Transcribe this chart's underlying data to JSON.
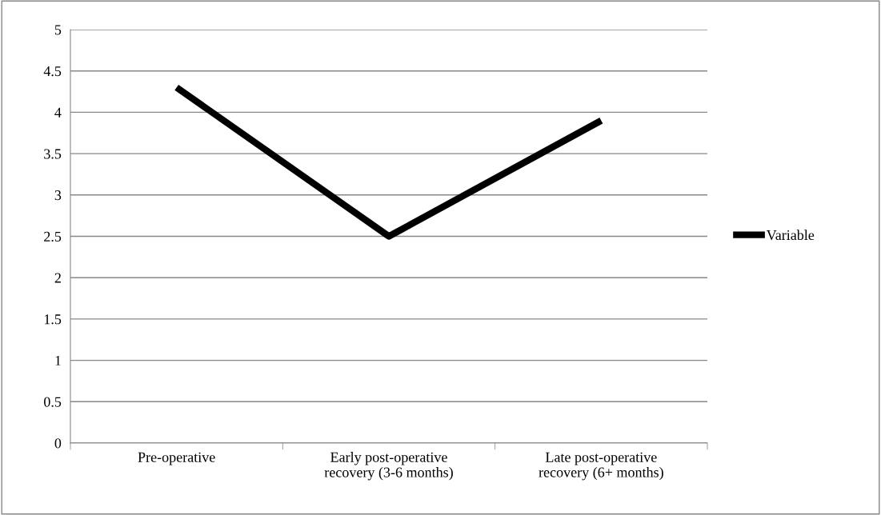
{
  "chart_data": {
    "type": "line",
    "categories": [
      "Pre-operative",
      "Early post-operative\nrecovery (3-6 months)",
      "Late post-operative\nrecovery (6+ months)"
    ],
    "series": [
      {
        "name": "Variable",
        "color": "#000000",
        "values": [
          4.3,
          2.5,
          3.9
        ]
      }
    ],
    "ylim": [
      0,
      5
    ],
    "yticks": [
      0,
      0.5,
      1,
      1.5,
      2,
      2.5,
      3,
      3.5,
      4,
      4.5,
      5
    ],
    "grid": "y",
    "legend": "right",
    "marker": "none",
    "line_style": "solid"
  }
}
